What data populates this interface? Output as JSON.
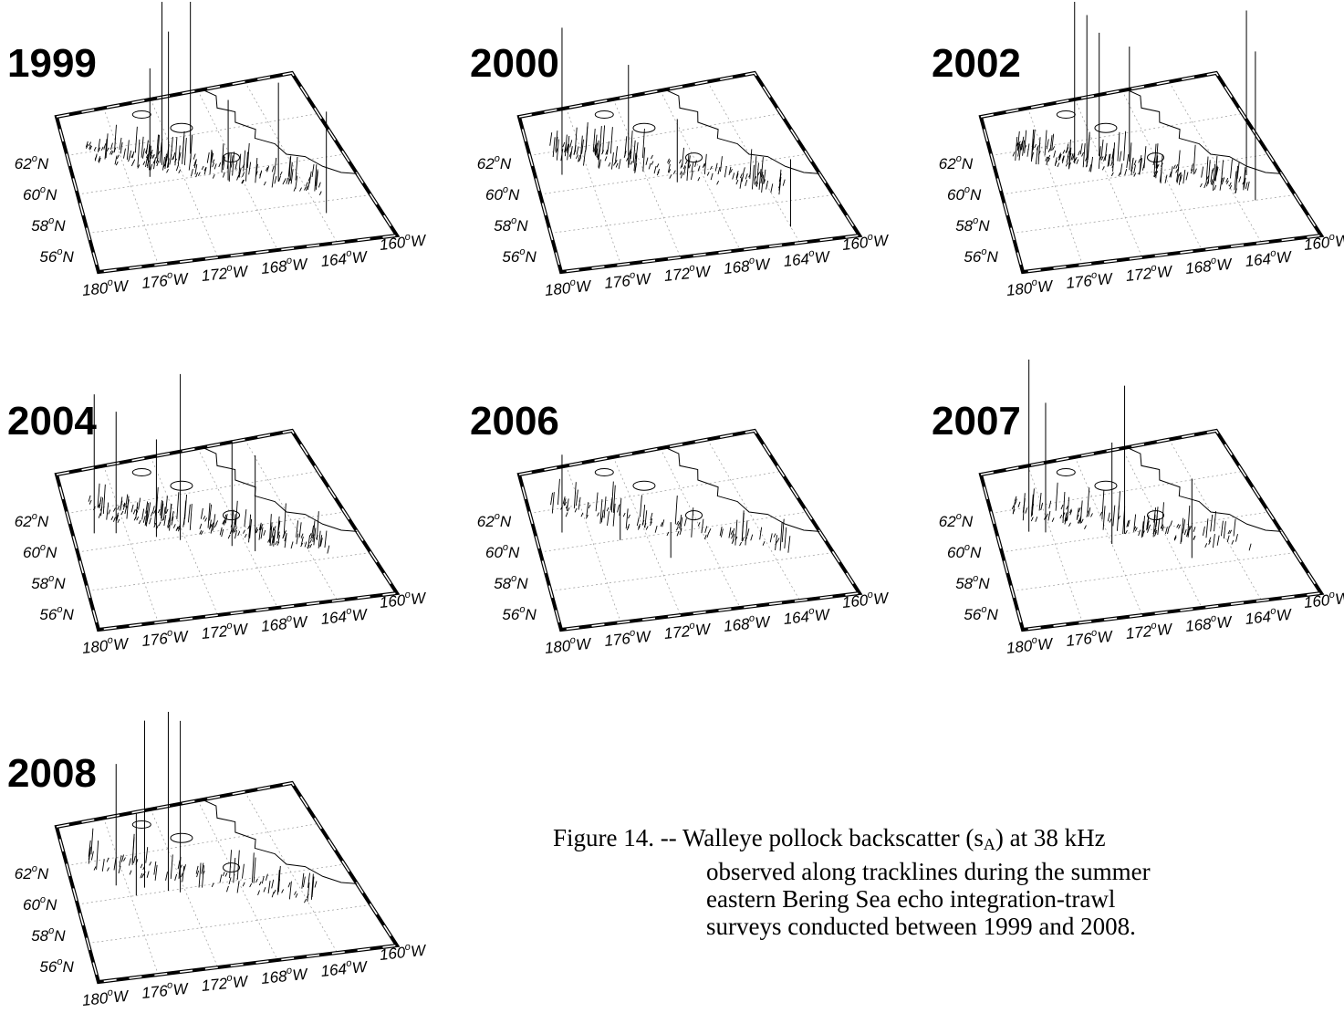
{
  "figure": {
    "panels": [
      {
        "year": "1999",
        "peaks": [
          [
            0.34,
            0.2,
            1.0
          ],
          [
            0.36,
            0.22,
            0.82
          ],
          [
            0.46,
            0.16,
            1.0
          ],
          [
            0.28,
            0.26,
            0.62
          ],
          [
            0.55,
            0.35,
            0.45
          ],
          [
            0.72,
            0.4,
            0.55
          ],
          [
            0.82,
            0.62,
            0.48
          ]
        ],
        "density": 0.75
      },
      {
        "year": "2000",
        "peaks": [
          [
            0.1,
            0.2,
            0.85
          ],
          [
            0.35,
            0.22,
            0.62
          ],
          [
            0.5,
            0.35,
            0.35
          ],
          [
            0.8,
            0.7,
            0.3
          ]
        ],
        "density": 0.65
      },
      {
        "year": "2002",
        "peaks": [
          [
            0.3,
            0.18,
            1.0
          ],
          [
            0.34,
            0.21,
            0.92
          ],
          [
            0.4,
            0.16,
            0.8
          ],
          [
            0.5,
            0.22,
            0.72
          ],
          [
            0.88,
            0.4,
            0.95
          ],
          [
            0.86,
            0.55,
            0.75
          ]
        ],
        "density": 0.8
      },
      {
        "year": "2004",
        "peaks": [
          [
            0.08,
            0.2,
            0.8
          ],
          [
            0.16,
            0.22,
            0.7
          ],
          [
            0.3,
            0.28,
            0.55
          ],
          [
            0.38,
            0.32,
            0.92
          ],
          [
            0.55,
            0.4,
            0.55
          ],
          [
            0.62,
            0.45,
            0.5
          ]
        ],
        "density": 0.8
      },
      {
        "year": "2006",
        "peaks": [
          [
            0.1,
            0.2,
            0.45
          ],
          [
            0.3,
            0.3,
            0.2
          ],
          [
            0.45,
            0.45,
            0.18
          ]
        ],
        "density": 0.45
      },
      {
        "year": "2007",
        "peaks": [
          [
            0.12,
            0.2,
            1.0
          ],
          [
            0.18,
            0.22,
            0.75
          ],
          [
            0.4,
            0.35,
            0.55
          ],
          [
            0.46,
            0.3,
            0.85
          ],
          [
            0.65,
            0.5,
            0.4
          ]
        ],
        "density": 0.55
      },
      {
        "year": "2008",
        "peaks": [
          [
            0.16,
            0.22,
            0.7
          ],
          [
            0.26,
            0.26,
            0.95
          ],
          [
            0.34,
            0.3,
            1.0
          ],
          [
            0.38,
            0.32,
            0.95
          ],
          [
            0.22,
            0.3,
            0.45
          ]
        ],
        "density": 0.4
      }
    ],
    "lat_labels": [
      "62",
      "60",
      "58",
      "56"
    ],
    "lon_labels": [
      "180",
      "176",
      "172",
      "168",
      "164",
      "160"
    ],
    "lat_suffix": "N",
    "lon_suffix": "W",
    "degree_mark": "o"
  },
  "caption": {
    "prefix": "Figure 14. -- Walleye pollock backscatter (s",
    "subscript": "A",
    "line1_rest": ") at 38 kHz",
    "line2": "observed along tracklines during the summer",
    "line3": "eastern Bering Sea echo integration-trawl",
    "line4": "surveys conducted between 1999 and 2008."
  }
}
